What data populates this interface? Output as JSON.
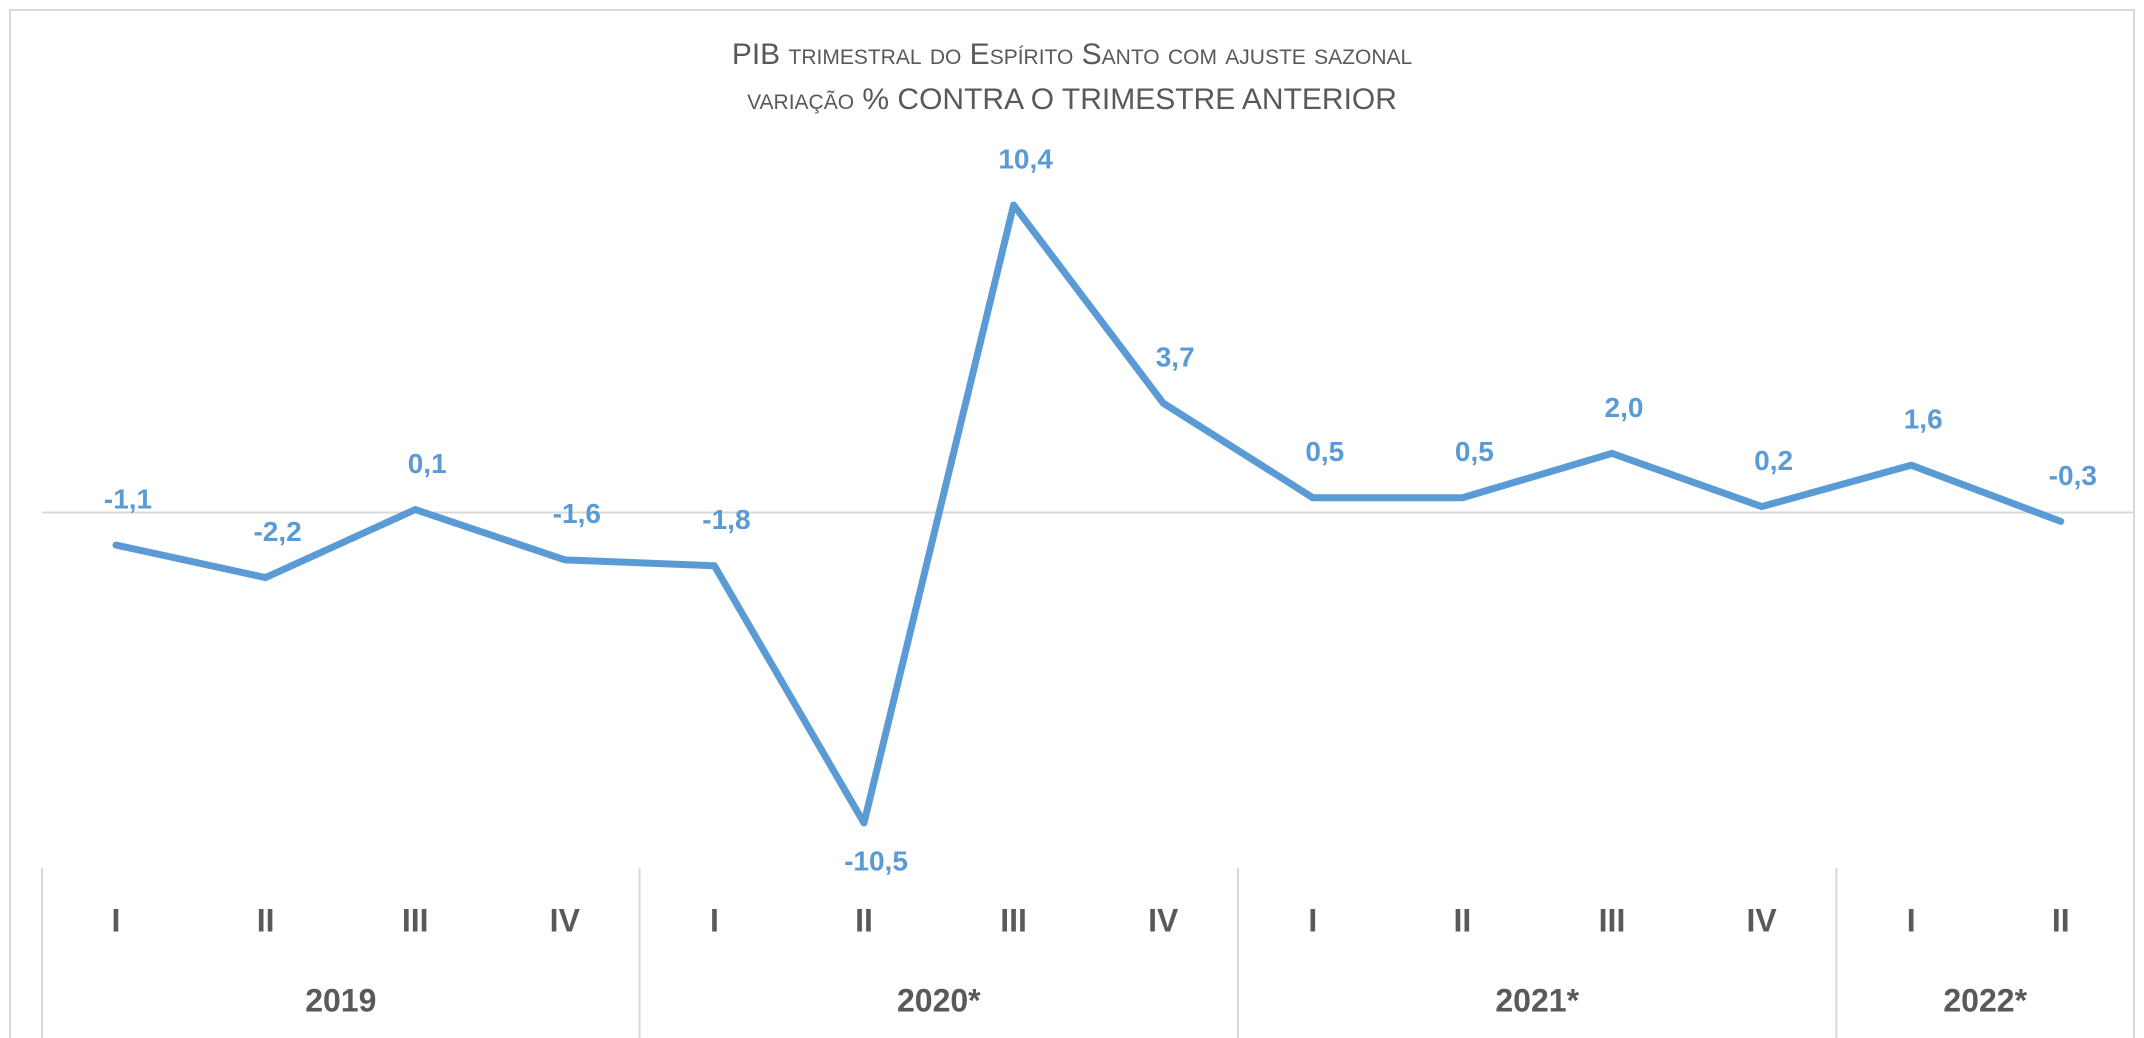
{
  "chart_data": {
    "type": "line",
    "title": "PIB trimestral do Espírito Santo com ajuste sazonal",
    "subtitle": "variação % CONTRA O TRIMESTRE ANTERIOR",
    "groups": [
      {
        "name": "2019",
        "categories": [
          "I",
          "II",
          "III",
          "IV"
        ]
      },
      {
        "name": "2020*",
        "categories": [
          "I",
          "II",
          "III",
          "IV"
        ]
      },
      {
        "name": "2021*",
        "categories": [
          "I",
          "II",
          "III",
          "IV"
        ]
      },
      {
        "name": "2022*",
        "categories": [
          "I",
          "II"
        ]
      }
    ],
    "values": [
      -1.1,
      -2.2,
      0.1,
      -1.6,
      -1.8,
      -10.5,
      10.4,
      3.7,
      0.5,
      0.5,
      2.0,
      0.2,
      1.6,
      -0.3
    ],
    "value_labels": [
      "-1,1",
      "-2,2",
      "0,1",
      "-1,6",
      "-1,8",
      "-10,5",
      "10,4",
      "3,7",
      "0,5",
      "0,5",
      "2,0",
      "0,2",
      "1,6",
      "-0,3"
    ],
    "color": "#5b9bd5"
  }
}
